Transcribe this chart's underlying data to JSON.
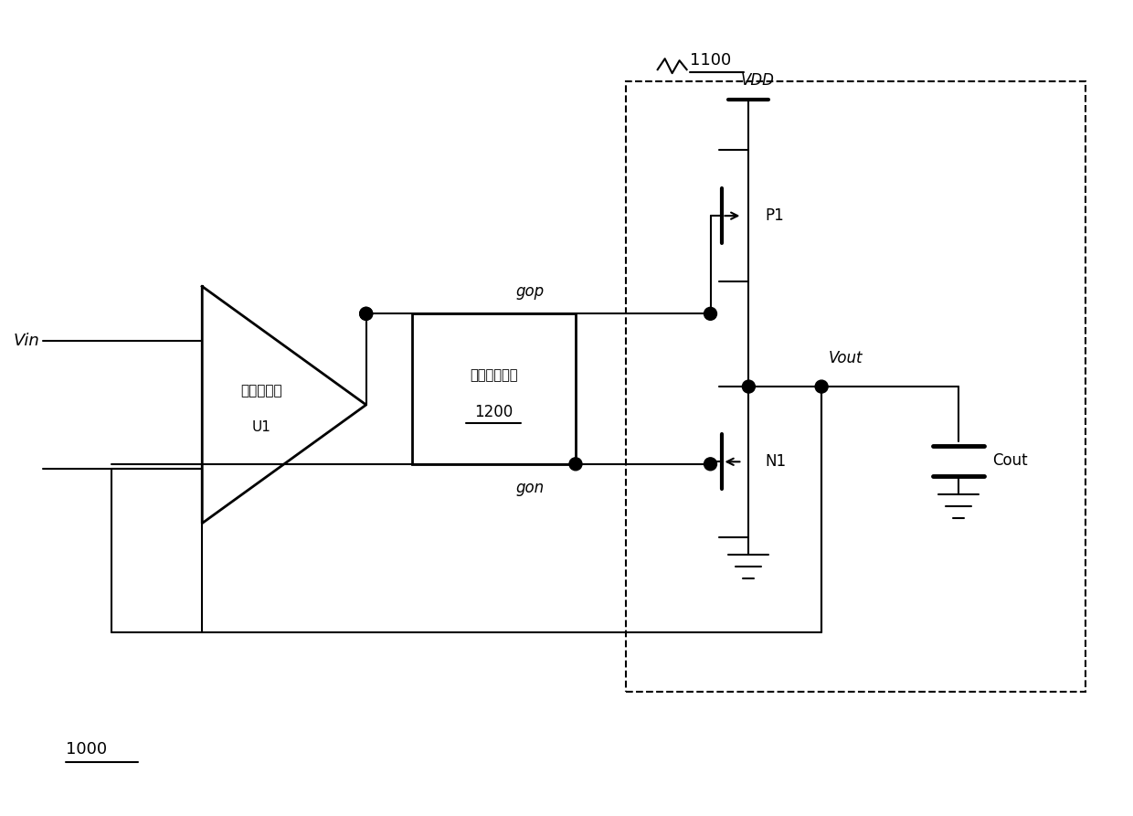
{
  "bg_color": "#ffffff",
  "line_color": "#000000",
  "fig_width": 12.4,
  "fig_height": 8.93,
  "labels": {
    "vin": "Vin",
    "vdd": "VDD",
    "vout": "Vout",
    "gop": "gop",
    "gon": "gon",
    "p1": "P1",
    "n1": "N1",
    "cout": "Cout",
    "u1_line1": "运算放大器",
    "u1_line2": "U1",
    "ocp_line1": "过流保护单元",
    "ocp_line2": "1200",
    "label_1000": "1000",
    "label_1100": "1100"
  }
}
